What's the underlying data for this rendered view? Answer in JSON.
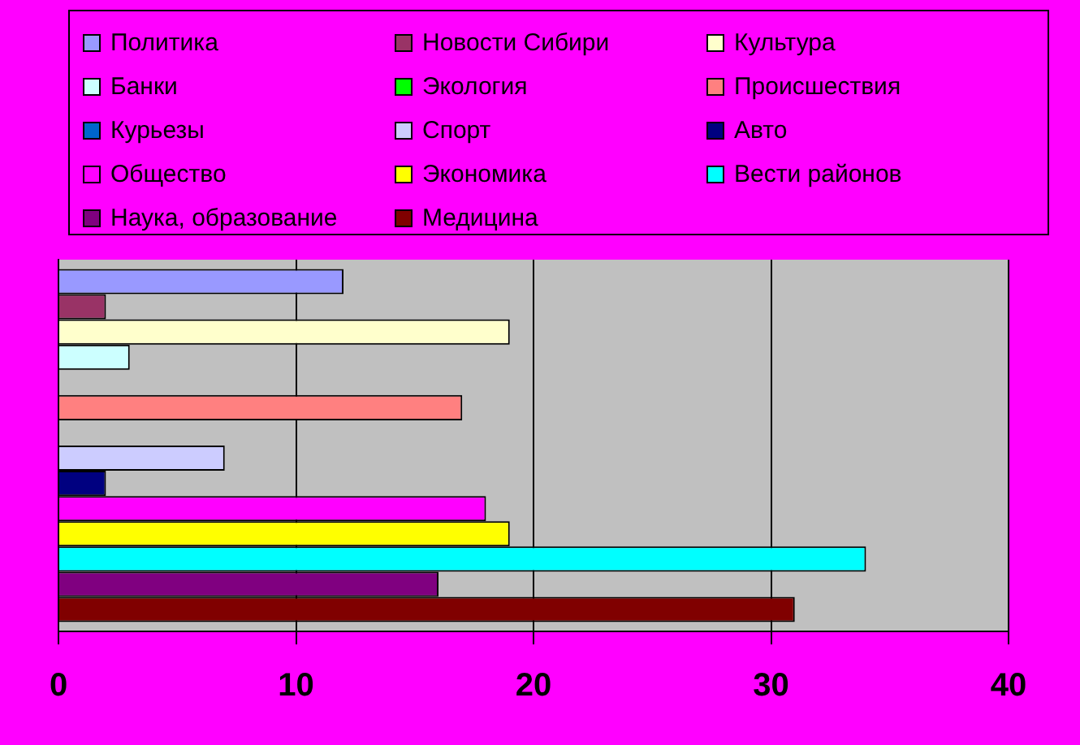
{
  "chart_data": {
    "type": "bar",
    "orientation": "horizontal",
    "categories": [
      null
    ],
    "series": [
      {
        "name": "Политика",
        "color": "#9999ff",
        "values": [
          12
        ]
      },
      {
        "name": "Новости Сибири",
        "color": "#993366",
        "values": [
          2
        ]
      },
      {
        "name": "Культура",
        "color": "#ffffcc",
        "values": [
          19
        ]
      },
      {
        "name": "Банки",
        "color": "#ccffff",
        "values": [
          3
        ]
      },
      {
        "name": "Экология",
        "color": "#00ff00",
        "values": [
          0
        ]
      },
      {
        "name": "Происшествия",
        "color": "#ff8080",
        "values": [
          17
        ]
      },
      {
        "name": "Курьезы",
        "color": "#0066cc",
        "values": [
          0
        ]
      },
      {
        "name": "Спорт",
        "color": "#ccccff",
        "values": [
          7
        ]
      },
      {
        "name": "Авто",
        "color": "#000080",
        "values": [
          2
        ]
      },
      {
        "name": "Общество",
        "color": "#ff00ff",
        "values": [
          18
        ]
      },
      {
        "name": "Экономика",
        "color": "#ffff00",
        "values": [
          19
        ]
      },
      {
        "name": "Вести районов",
        "color": "#00ffff",
        "values": [
          34
        ]
      },
      {
        "name": "Наука, образование",
        "color": "#800080",
        "values": [
          16
        ]
      },
      {
        "name": "Медицина",
        "color": "#800000",
        "values": [
          31
        ]
      }
    ],
    "xlim": [
      0,
      40
    ],
    "xticks": [
      0,
      10,
      20,
      30,
      40
    ],
    "grid": "x",
    "legend": "top"
  }
}
